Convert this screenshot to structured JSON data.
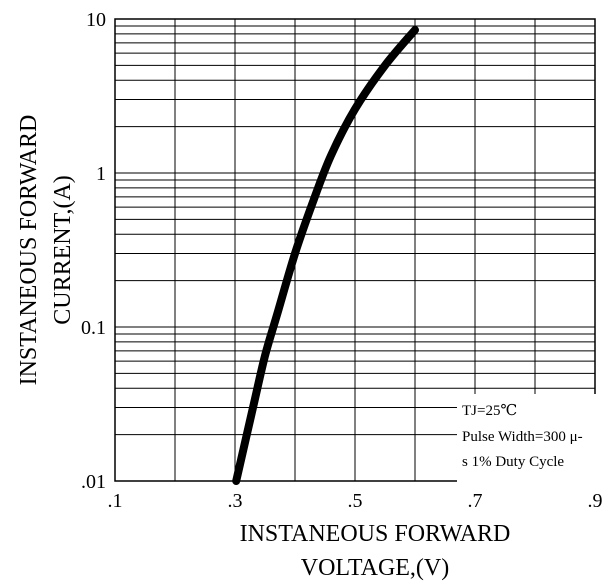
{
  "chart_data": {
    "type": "line",
    "xscale": "linear",
    "yscale": "log",
    "xlim": [
      0.1,
      0.9
    ],
    "ylim": [
      0.01,
      10
    ],
    "x_ticks": [
      0.1,
      0.3,
      0.5,
      0.7,
      0.9
    ],
    "x_tick_labels": [
      ".1",
      ".3",
      ".5",
      ".7",
      ".9"
    ],
    "y_ticks": [
      0.01,
      0.1,
      1,
      10
    ],
    "y_tick_labels": [
      ".01",
      "0.1",
      "1",
      "10"
    ],
    "xlabel": [
      "INSTANEOUS FORWARD",
      "VOLTAGE,(V)"
    ],
    "ylabel": [
      "INSTANEOUS FORWARD",
      "CURRENT,(A)"
    ],
    "grid": true,
    "series": [
      {
        "x": [
          0.302,
          0.33,
          0.35,
          0.37,
          0.4,
          0.43,
          0.46,
          0.5,
          0.55,
          0.6
        ],
        "y": [
          0.01,
          0.03,
          0.065,
          0.12,
          0.3,
          0.65,
          1.3,
          2.6,
          5.0,
          8.5
        ]
      }
    ],
    "annotation": {
      "line1": "TJ=25℃",
      "line2": "Pulse Width=300 μ-",
      "line3": "s 1% Duty Cycle"
    }
  }
}
